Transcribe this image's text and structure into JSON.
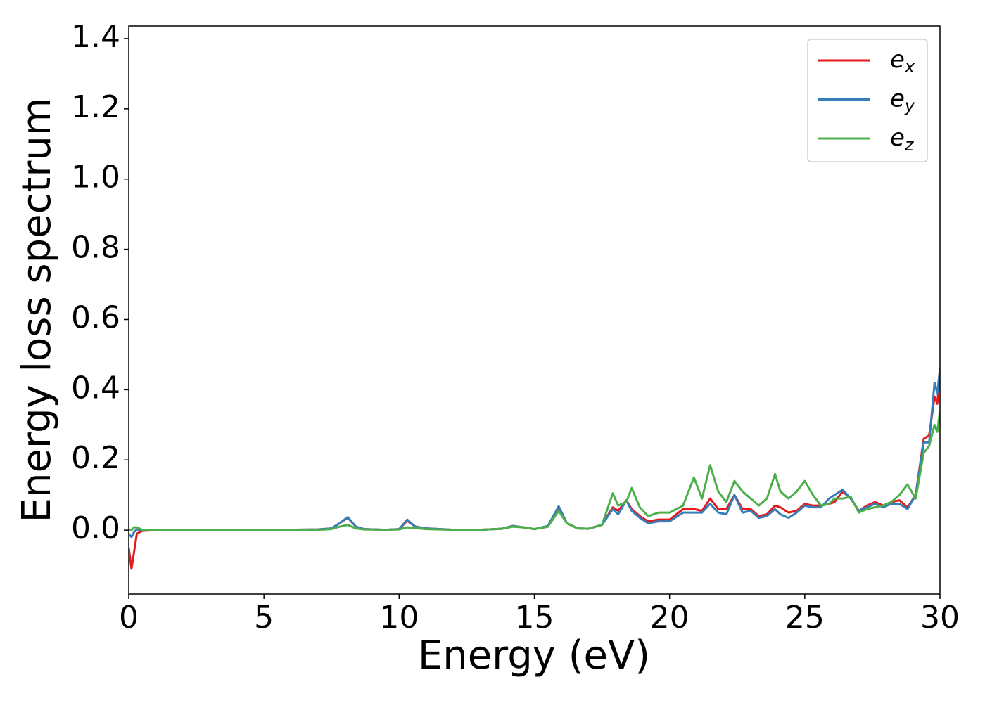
{
  "chart_data": {
    "type": "line",
    "x_label": "Energy (eV)",
    "y_label": "Energy loss spectrum",
    "x": [
      0,
      0.1,
      0.2,
      0.3,
      0.5,
      1,
      3,
      5,
      7,
      7.5,
      7.8,
      8.1,
      8.4,
      8.7,
      9.5,
      10,
      10.3,
      10.6,
      11,
      12,
      13,
      13.8,
      14.2,
      14.6,
      15,
      15.5,
      15.9,
      16.2,
      16.6,
      17,
      17.5,
      17.9,
      18.1,
      18.4,
      18.6,
      18.9,
      19.2,
      19.6,
      20,
      20.5,
      20.9,
      21.2,
      21.5,
      21.8,
      22.1,
      22.4,
      22.7,
      23,
      23.3,
      23.6,
      23.9,
      24.1,
      24.4,
      24.7,
      25,
      25.3,
      25.6,
      25.9,
      26.1,
      26.4,
      26.7,
      27,
      27.3,
      27.6,
      27.9,
      28.2,
      28.5,
      28.8,
      29.1,
      29.4,
      29.6,
      29.8,
      29.9,
      30
    ],
    "series": [
      {
        "name": "e_x",
        "color": "#e41a1c",
        "values": [
          -0.05,
          -0.11,
          -0.06,
          -0.01,
          -0.002,
          0,
          0,
          0,
          0.002,
          0.005,
          0.02,
          0.035,
          0.01,
          0.003,
          0.001,
          0.003,
          0.027,
          0.01,
          0.005,
          0.001,
          0.001,
          0.004,
          0.012,
          0.008,
          0.003,
          0.01,
          0.065,
          0.02,
          0.005,
          0.004,
          0.015,
          0.065,
          0.055,
          0.085,
          0.06,
          0.04,
          0.025,
          0.03,
          0.03,
          0.06,
          0.06,
          0.055,
          0.09,
          0.06,
          0.06,
          0.1,
          0.06,
          0.06,
          0.04,
          0.045,
          0.07,
          0.065,
          0.05,
          0.055,
          0.075,
          0.07,
          0.07,
          0.075,
          0.08,
          0.11,
          0.09,
          0.055,
          0.07,
          0.08,
          0.07,
          0.08,
          0.085,
          0.065,
          0.1,
          0.26,
          0.27,
          0.38,
          0.36,
          0.45
        ]
      },
      {
        "name": "e_y",
        "color": "#377eb8",
        "values": [
          -0.01,
          -0.02,
          -0.005,
          0.002,
          0,
          0,
          0,
          0,
          0.002,
          0.005,
          0.02,
          0.037,
          0.01,
          0.003,
          0.001,
          0.003,
          0.03,
          0.01,
          0.005,
          0.001,
          0.001,
          0.004,
          0.012,
          0.008,
          0.003,
          0.012,
          0.068,
          0.02,
          0.005,
          0.004,
          0.015,
          0.06,
          0.045,
          0.085,
          0.055,
          0.035,
          0.02,
          0.025,
          0.025,
          0.05,
          0.05,
          0.05,
          0.075,
          0.05,
          0.045,
          0.1,
          0.05,
          0.055,
          0.035,
          0.04,
          0.06,
          0.045,
          0.035,
          0.05,
          0.07,
          0.065,
          0.065,
          0.09,
          0.1,
          0.115,
          0.09,
          0.055,
          0.065,
          0.075,
          0.065,
          0.075,
          0.075,
          0.06,
          0.1,
          0.25,
          0.25,
          0.42,
          0.39,
          0.46
        ]
      },
      {
        "name": "e_z",
        "color": "#4daf4a",
        "values": [
          0,
          0,
          0.008,
          0.008,
          0.001,
          0,
          0,
          0,
          0.001,
          0.003,
          0.01,
          0.015,
          0.005,
          0.002,
          0.001,
          0.002,
          0.008,
          0.006,
          0.003,
          0.001,
          0.001,
          0.004,
          0.01,
          0.008,
          0.003,
          0.01,
          0.055,
          0.02,
          0.005,
          0.004,
          0.015,
          0.105,
          0.07,
          0.08,
          0.12,
          0.065,
          0.04,
          0.05,
          0.05,
          0.07,
          0.15,
          0.09,
          0.185,
          0.11,
          0.08,
          0.14,
          0.11,
          0.09,
          0.07,
          0.09,
          0.16,
          0.11,
          0.09,
          0.11,
          0.14,
          0.1,
          0.07,
          0.075,
          0.09,
          0.09,
          0.095,
          0.05,
          0.06,
          0.065,
          0.07,
          0.08,
          0.1,
          0.13,
          0.09,
          0.22,
          0.24,
          0.3,
          0.28,
          0.34
        ]
      }
    ],
    "xlim": [
      0,
      30
    ],
    "xticks": [
      0,
      5,
      10,
      15,
      20,
      25,
      30
    ],
    "ylim": [
      -0.182,
      1.436
    ],
    "yticks": [
      {
        "value": 0,
        "label": "0.0"
      },
      0.2,
      0.4,
      0.6,
      0.8,
      {
        "value": 1,
        "label": "1.0"
      },
      1.2,
      1.4
    ],
    "legend": "upper right",
    "grid": false
  }
}
